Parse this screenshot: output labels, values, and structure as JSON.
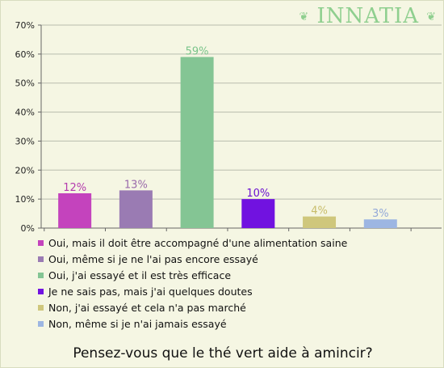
{
  "brand": {
    "logo_text": "INNATIA",
    "logo_ornament": "❦"
  },
  "chart_data": {
    "type": "bar",
    "categories": [
      "Oui, mais il doit être accompagné d'une alimentation saine",
      "Oui, même si je ne l'ai pas encore essayé",
      "Oui, j'ai essayé et il est très efficace",
      "Je ne sais pas, mais j'ai quelques doutes",
      "Non, j'ai essayé et cela n'a pas marché",
      "Non, même si je n'ai jamais essayé"
    ],
    "values": [
      12,
      13,
      59,
      10,
      4,
      3
    ],
    "value_labels": [
      "12%",
      "13%",
      "59%",
      "10%",
      "4%",
      "3%"
    ],
    "colors": [
      "#c443bd",
      "#9a7bb3",
      "#84c594",
      "#7112e0",
      "#cfc77c",
      "#9db6e2"
    ],
    "label_colors": [
      "#b43aad",
      "#9a6aab",
      "#7ac48a",
      "#6a10d0",
      "#c8bd6a",
      "#93a9d8"
    ],
    "ylim": [
      0,
      70
    ],
    "yticks": [
      "0%",
      "10%",
      "20%",
      "30%",
      "40%",
      "50%",
      "60%",
      "70%"
    ],
    "title": "Pensez-vous que le thé vert aide à amincir?",
    "xlabel": "",
    "ylabel": "",
    "grid": true,
    "legend_position": "bottom"
  }
}
